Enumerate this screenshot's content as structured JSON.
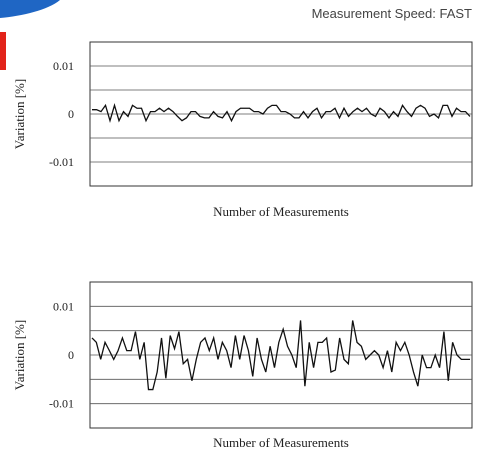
{
  "header": {
    "speed_label": "Measurement Speed: FAST"
  },
  "colors": {
    "accent_blue": "#1f66c4",
    "accent_red": "#e2231a",
    "line": "#111111",
    "grid": "#555555"
  },
  "chart_data": [
    {
      "type": "line",
      "title": "",
      "xlabel": "Number of Measurements",
      "ylabel": "Variation [%]",
      "ylim": [
        -0.015,
        0.015
      ],
      "yticks": [
        0.01,
        0,
        -0.01
      ],
      "ytick_labels": [
        "0.01",
        "0",
        "-0.01"
      ],
      "grid": true,
      "series": [
        {
          "values": [
            0.0009,
            0.0009,
            0.0005,
            0.0018,
            -0.0014,
            0.0018,
            -0.0014,
            0.0005,
            -0.0005,
            0.0018,
            0.0012,
            0.0012,
            -0.0014,
            0.0005,
            0.0005,
            0.0012,
            0.0005,
            0.0012,
            0.0005,
            -0.0005,
            -0.0014,
            -0.0008,
            0.0005,
            0.0005,
            -0.0005,
            -0.0008,
            -0.0008,
            0.0005,
            -0.0005,
            -0.0008,
            0.0005,
            -0.0014,
            0.0005,
            0.0012,
            0.0012,
            0.0012,
            0.0005,
            0.0005,
            0.0,
            0.0012,
            0.0018,
            0.0018,
            0.0005,
            0.0005,
            0.0,
            -0.0008,
            -0.0008,
            0.0005,
            -0.0008,
            0.0005,
            0.0012,
            -0.0008,
            0.0005,
            0.0005,
            0.0012,
            -0.0008,
            0.0012,
            -0.0005,
            0.0005,
            0.0012,
            0.0005,
            0.0012,
            0.0,
            -0.0005,
            0.0012,
            0.0005,
            -0.0008,
            0.0005,
            -0.0005,
            0.0018,
            0.0005,
            -0.0005,
            0.0012,
            0.0018,
            0.0012,
            -0.0005,
            0.0,
            -0.0008,
            0.0018,
            0.0018,
            -0.0005,
            0.0012,
            0.0005,
            0.0005,
            -0.0005
          ]
        }
      ]
    },
    {
      "type": "line",
      "title": "",
      "xlabel": "Number of Measurements",
      "ylabel": "Variation [%]",
      "ylim": [
        -0.015,
        0.015
      ],
      "yticks": [
        0.01,
        0,
        -0.01
      ],
      "ytick_labels": [
        "0.01",
        "0",
        "-0.01"
      ],
      "grid": true,
      "series": [
        {
          "values": [
            0.0035,
            0.0026,
            -0.0009,
            0.0026,
            0.0009,
            -0.0009,
            0.0009,
            0.0035,
            0.0009,
            0.0009,
            0.0048,
            -0.0009,
            0.0026,
            -0.0071,
            -0.0071,
            -0.0035,
            0.0035,
            -0.0048,
            0.004,
            0.0013,
            0.0048,
            -0.0018,
            -0.0009,
            -0.0053,
            -0.0009,
            0.0026,
            0.0035,
            0.0009,
            0.0035,
            -0.0009,
            0.0026,
            0.0009,
            -0.0026,
            0.004,
            -0.0009,
            0.004,
            0.0009,
            -0.0044,
            0.0035,
            -0.0009,
            -0.0035,
            0.0018,
            -0.0026,
            0.0026,
            0.0053,
            0.0018,
            0.0,
            -0.0026,
            0.0071,
            -0.0064,
            0.0026,
            -0.0026,
            0.0026,
            0.0026,
            0.0035,
            -0.0035,
            -0.0031,
            0.0035,
            -0.0009,
            -0.0018,
            0.0071,
            0.0026,
            0.0018,
            -0.0009,
            0.0,
            0.0009,
            0.0,
            -0.0026,
            0.0009,
            -0.0035,
            0.0026,
            0.0009,
            0.0026,
            0.0,
            -0.0035,
            -0.0064,
            0.0,
            -0.0026,
            -0.0026,
            0.0,
            -0.0026,
            0.0048,
            -0.0053,
            0.0026,
            0.0,
            -0.0009,
            -0.0009,
            -0.0009
          ]
        }
      ]
    }
  ]
}
